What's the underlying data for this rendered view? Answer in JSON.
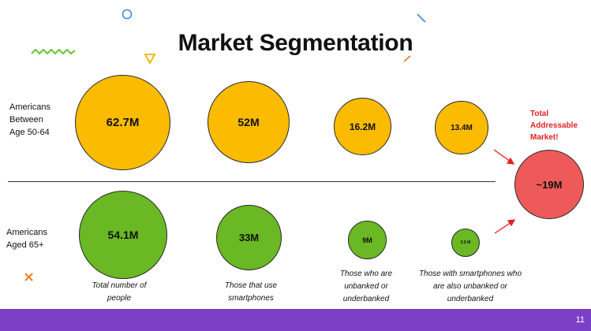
{
  "title": "Market Segmentation",
  "rows": {
    "top": "Americans Between Age 50-64",
    "bottom": "Americans Aged 65+"
  },
  "circles_top": [
    "62.7M",
    "52M",
    "16.2M",
    "13.4M"
  ],
  "circles_bottom": [
    "54.1M",
    "33M",
    "9M",
    "5.5 M"
  ],
  "captions": [
    "Total number of people",
    "Those that use smartphones",
    "Those who are unbanked or underbanked",
    "Those with smartphones who are also unbanked or underbanked"
  ],
  "total": {
    "label": "Total Addressable Market!",
    "value": "~19M"
  },
  "colors": {
    "yellow": "#fbbb00",
    "green": "#69b824",
    "red": "#ee5a5a",
    "footer": "#7b3fc6",
    "accent_red": "#e02222"
  },
  "decorations": [
    "circle-outline",
    "diagonal-line",
    "zigzag",
    "triangle-outline",
    "x-mark",
    "orange-dash"
  ],
  "page_number": "11"
}
